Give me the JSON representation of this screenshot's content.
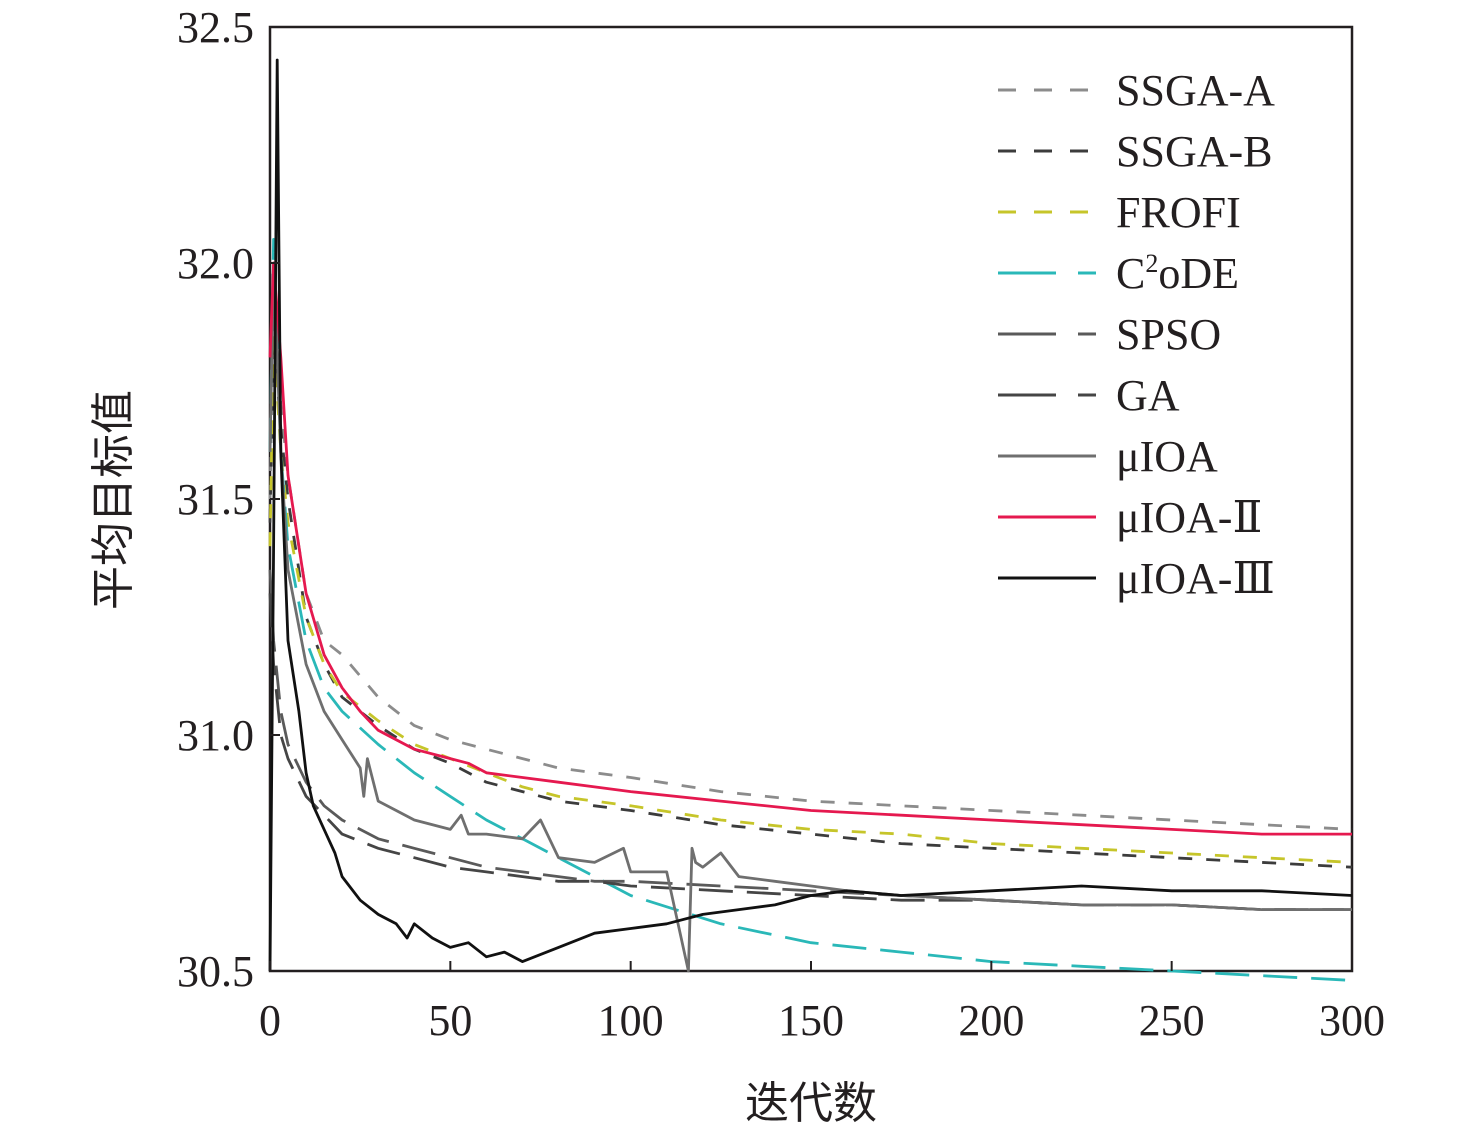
{
  "chart_data": {
    "type": "line",
    "title": "",
    "xlabel": "迭代数",
    "ylabel": "平均目标值",
    "xlim": [
      0,
      300
    ],
    "ylim": [
      30.5,
      32.5
    ],
    "xticks": [
      "0",
      "50",
      "100",
      "150",
      "200",
      "250",
      "300"
    ],
    "yticks": [
      "30.5",
      "31.0",
      "31.5",
      "32.0",
      "32.5"
    ],
    "grid": false,
    "legend": "top-right",
    "series": [
      {
        "name": "SSGA-A",
        "color": "#8c8c8c",
        "dash": "dash",
        "x": [
          0,
          1,
          3,
          5,
          10,
          15,
          20,
          30,
          40,
          50,
          60,
          70,
          80,
          90,
          100,
          125,
          150,
          175,
          200,
          225,
          250,
          275,
          300
        ],
        "y": [
          31.5,
          31.9,
          31.7,
          31.55,
          31.3,
          31.2,
          31.17,
          31.08,
          31.02,
          30.99,
          30.97,
          30.95,
          30.93,
          30.92,
          30.91,
          30.88,
          30.86,
          30.85,
          30.84,
          30.83,
          30.82,
          30.81,
          30.8
        ]
      },
      {
        "name": "SSGA-B",
        "color": "#3c3c3c",
        "dash": "dash",
        "x": [
          0,
          1,
          3,
          5,
          10,
          15,
          20,
          30,
          40,
          50,
          60,
          70,
          80,
          90,
          100,
          125,
          150,
          175,
          200,
          225,
          250,
          275,
          300
        ],
        "y": [
          31.45,
          31.85,
          31.65,
          31.5,
          31.25,
          31.15,
          31.08,
          31.02,
          30.97,
          30.94,
          30.9,
          30.88,
          30.86,
          30.85,
          30.84,
          30.81,
          30.79,
          30.77,
          30.76,
          30.75,
          30.74,
          30.73,
          30.72
        ]
      },
      {
        "name": "FROFI",
        "color": "#c6c52a",
        "dash": "dash",
        "x": [
          0,
          1,
          3,
          5,
          10,
          15,
          20,
          30,
          40,
          50,
          60,
          70,
          80,
          90,
          100,
          125,
          150,
          175,
          200,
          225,
          250,
          275,
          300
        ],
        "y": [
          31.4,
          31.85,
          31.6,
          31.45,
          31.25,
          31.15,
          31.09,
          31.03,
          30.98,
          30.95,
          30.92,
          30.89,
          30.87,
          30.86,
          30.85,
          30.82,
          30.8,
          30.79,
          30.77,
          30.76,
          30.75,
          30.74,
          30.73
        ]
      },
      {
        "name": "C²oDE",
        "color": "#2ab8b8",
        "dash": "longdash",
        "x": [
          0,
          1,
          3,
          5,
          10,
          15,
          20,
          30,
          40,
          50,
          60,
          70,
          80,
          90,
          100,
          125,
          150,
          175,
          200,
          225,
          250,
          275,
          300
        ],
        "y": [
          31.6,
          32.05,
          31.6,
          31.4,
          31.2,
          31.1,
          31.05,
          30.98,
          30.92,
          30.87,
          30.82,
          30.78,
          30.74,
          30.7,
          30.66,
          30.6,
          30.56,
          30.54,
          30.52,
          30.51,
          30.5,
          30.49,
          30.48
        ]
      },
      {
        "name": "SPSO",
        "color": "#5a5a5a",
        "dash": "longdash",
        "x": [
          0,
          1,
          3,
          5,
          10,
          15,
          20,
          30,
          40,
          50,
          60,
          70,
          80,
          90,
          100,
          125,
          150,
          175,
          200,
          225,
          250,
          275,
          300
        ],
        "y": [
          31.35,
          31.2,
          31.05,
          30.98,
          30.9,
          30.85,
          30.82,
          30.78,
          30.76,
          30.74,
          30.72,
          30.71,
          30.7,
          30.69,
          30.69,
          30.68,
          30.67,
          30.66,
          30.65,
          30.64,
          30.64,
          30.63,
          30.63
        ]
      },
      {
        "name": "GA",
        "color": "#454545",
        "dash": "longdash",
        "x": [
          0,
          1,
          3,
          5,
          10,
          15,
          20,
          30,
          40,
          50,
          60,
          70,
          80,
          90,
          100,
          125,
          150,
          175,
          200,
          225,
          250,
          275,
          300
        ],
        "y": [
          31.3,
          31.15,
          31.0,
          30.95,
          30.87,
          30.83,
          30.79,
          30.76,
          30.74,
          30.72,
          30.71,
          30.7,
          30.69,
          30.69,
          30.68,
          30.67,
          30.66,
          30.65,
          30.65,
          30.64,
          30.64,
          30.63,
          30.63
        ]
      },
      {
        "name": "μIOA",
        "color": "#6f6f6f",
        "dash": "solid",
        "x": [
          0,
          1,
          3,
          5,
          10,
          15,
          20,
          25,
          26,
          27,
          28,
          30,
          35,
          40,
          50,
          53,
          55,
          60,
          70,
          75,
          80,
          90,
          98,
          100,
          110,
          116,
          117,
          118,
          120,
          125,
          130,
          140,
          150,
          160,
          175,
          200,
          225,
          250,
          275,
          300
        ],
        "y": [
          31.6,
          32.0,
          31.6,
          31.35,
          31.15,
          31.05,
          30.99,
          30.93,
          30.87,
          30.95,
          30.92,
          30.86,
          30.84,
          30.82,
          30.8,
          30.83,
          30.79,
          30.79,
          30.78,
          30.82,
          30.74,
          30.73,
          30.76,
          30.71,
          30.71,
          30.5,
          30.76,
          30.73,
          30.72,
          30.75,
          30.7,
          30.69,
          30.68,
          30.67,
          30.66,
          30.65,
          30.64,
          30.64,
          30.63,
          30.63
        ]
      },
      {
        "name": "μIOA-Ⅱ",
        "color": "#e5194f",
        "dash": "solid",
        "x": [
          0,
          1,
          3,
          5,
          10,
          15,
          20,
          25,
          30,
          40,
          50,
          55,
          60,
          70,
          80,
          90,
          100,
          125,
          150,
          175,
          200,
          225,
          250,
          275,
          300
        ],
        "y": [
          31.8,
          32.0,
          31.8,
          31.55,
          31.3,
          31.17,
          31.1,
          31.05,
          31.01,
          30.97,
          30.95,
          30.94,
          30.92,
          30.91,
          30.9,
          30.89,
          30.88,
          30.86,
          30.84,
          30.83,
          30.82,
          30.81,
          30.8,
          30.79,
          30.79
        ]
      },
      {
        "name": "μIOA-Ⅲ",
        "color": "#111111",
        "dash": "solid",
        "x": [
          0,
          1,
          2,
          3,
          4,
          5,
          8,
          10,
          12,
          15,
          18,
          20,
          25,
          30,
          35,
          38,
          40,
          45,
          50,
          55,
          60,
          65,
          70,
          80,
          90,
          100,
          110,
          120,
          130,
          140,
          150,
          160,
          175,
          200,
          225,
          250,
          275,
          300
        ],
        "y": [
          30.5,
          31.4,
          32.43,
          31.6,
          31.4,
          31.2,
          31.05,
          30.92,
          30.85,
          30.8,
          30.75,
          30.7,
          30.65,
          30.62,
          30.6,
          30.57,
          30.6,
          30.57,
          30.55,
          30.56,
          30.53,
          30.54,
          30.52,
          30.55,
          30.58,
          30.59,
          30.6,
          30.62,
          30.63,
          30.64,
          30.66,
          30.67,
          30.66,
          30.67,
          30.68,
          30.67,
          30.67,
          30.66
        ]
      }
    ]
  }
}
